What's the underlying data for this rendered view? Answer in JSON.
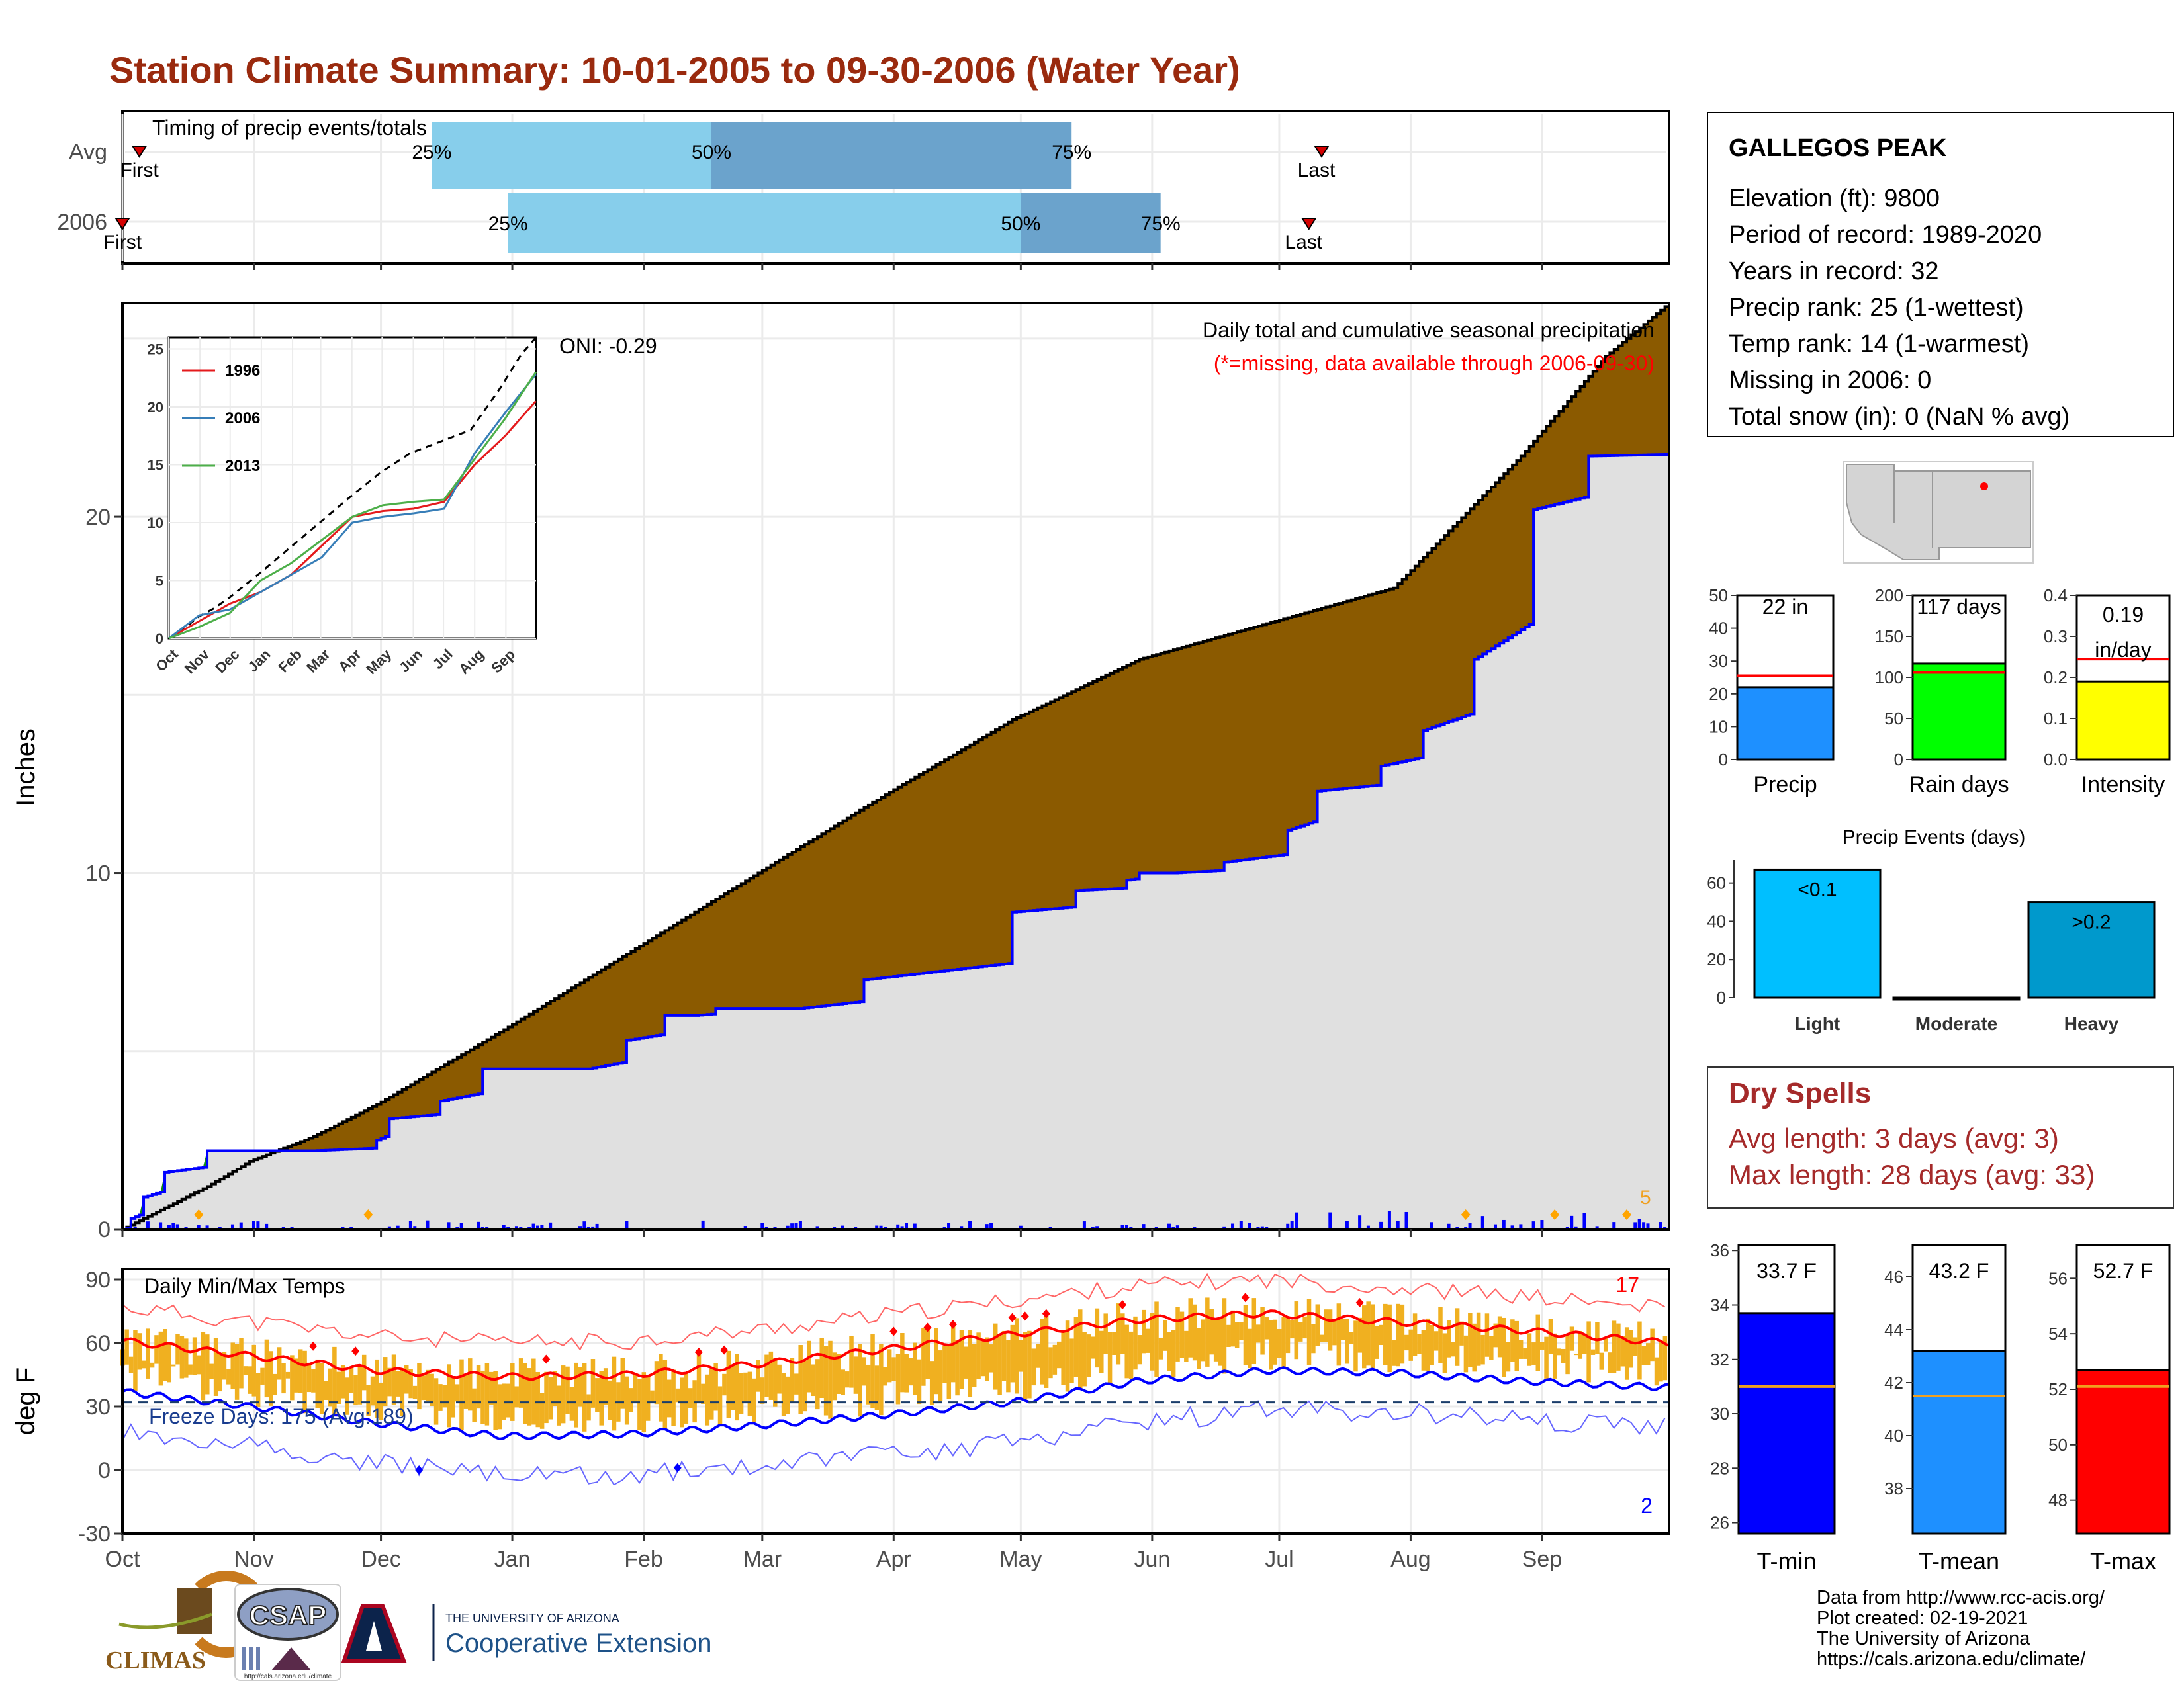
{
  "title": "Station Climate Summary: 10-01-2005 to 09-30-2006 (Water Year)",
  "colors": {
    "title": "#9a2a0e",
    "light_blue": "#87ceeb",
    "mid_blue": "#6ba3cc",
    "brown": "#8b5a00",
    "green": "#118c11",
    "grey_fill": "#e0e0e0",
    "blue": "#0000ff",
    "orange_bars": "#f0b020",
    "red": "#ff0000",
    "dry_red": "#a52a2a"
  },
  "timing": {
    "label": "Timing of precip events/totals",
    "rows": [
      "Avg",
      "2006"
    ],
    "avg": {
      "first_label": "First",
      "last_label": "Last",
      "p25": "25%",
      "p50": "50%",
      "p75": "75%",
      "p25_day": 73,
      "p50_day": 139,
      "p75_day": 224,
      "first_day": 4,
      "last_day": 283
    },
    "y2006": {
      "first_label": "First",
      "last_label": "Last",
      "p25": "25%",
      "p50": "50%",
      "p75": "75%",
      "p25_day": 91,
      "p50_day": 212,
      "p75_day": 245,
      "first_day": 0,
      "last_day": 280
    }
  },
  "precip": {
    "y_label": "Inches",
    "title_right": "Daily total and cumulative seasonal precipitation",
    "missing_note": "(*=missing, data available through 2006-09-30)",
    "oni": "ONI: -0.29",
    "count_label": "5",
    "y_ticks": [
      "0",
      "10",
      "20"
    ],
    "inset": {
      "y_ticks": [
        "0",
        "5",
        "10",
        "15",
        "20",
        "25"
      ],
      "x_ticks": [
        "Oct",
        "Nov",
        "Dec",
        "Jan",
        "Feb",
        "Mar",
        "Apr",
        "May",
        "Jun",
        "Jul",
        "Aug",
        "Sep"
      ],
      "legend": [
        "1996",
        "2006",
        "2013"
      ]
    }
  },
  "temps": {
    "title": "Daily Min/Max Temps",
    "y_label": "deg F",
    "y_ticks": [
      "90",
      "60",
      "30",
      "0",
      "-30"
    ],
    "freeze_note": "Freeze Days: 175 (Avg:189)",
    "record_high_count": "17",
    "record_low_count": "2"
  },
  "x_months": [
    "Oct",
    "Nov",
    "Dec",
    "Jan",
    "Feb",
    "Mar",
    "Apr",
    "May",
    "Jun",
    "Jul",
    "Aug",
    "Sep"
  ],
  "station": {
    "name": "GALLEGOS PEAK",
    "lines": [
      "Elevation (ft): 9800",
      "Period of record: 1989-2020",
      "Years in record: 32",
      "Precip rank: 25 (1-wettest)",
      "Temp rank: 14 (1-warmest)",
      "Missing in 2006: 0",
      "Total snow (in): 0 (NaN % avg)"
    ]
  },
  "summary_bars": [
    {
      "label": "Precip",
      "value_label": "22 in",
      "value": 22,
      "avg": 25.5,
      "ymax": 50,
      "ticks": [
        "0",
        "10",
        "20",
        "30",
        "40",
        "50"
      ],
      "color": "#1e90ff"
    },
    {
      "label": "Rain days",
      "value_label": "117 days",
      "value": 117,
      "avg": 106,
      "ymax": 200,
      "ticks": [
        "0",
        "50",
        "100",
        "150",
        "200"
      ],
      "color": "#00ff00"
    },
    {
      "label": "Intensity",
      "value_label_1": "0.19",
      "value_label_2": "in/day",
      "value": 0.19,
      "avg": 0.245,
      "ymax": 0.4,
      "ticks": [
        "0.0",
        "0.1",
        "0.2",
        "0.3",
        "0.4"
      ],
      "color": "#ffff00"
    }
  ],
  "events": {
    "title": "Precip Events (days)",
    "categories": [
      "Light",
      "Moderate",
      "Heavy"
    ],
    "values": [
      67,
      0,
      50
    ],
    "labels": [
      "<0.1",
      "",
      ">0.2"
    ],
    "ticks": [
      "0",
      "20",
      "40",
      "60"
    ],
    "colors": [
      "#00bfff",
      "#00bfff",
      "#0099cc"
    ]
  },
  "dry_spells": {
    "title": "Dry Spells",
    "avg_line": "Avg length: 3 days (avg: 3)",
    "max_line": "Max length: 28 days (avg: 33)"
  },
  "temp_bars": [
    {
      "label": "T-min",
      "value_label": "33.7 F",
      "value": 33.7,
      "avg": 31.0,
      "ymin": 25.6,
      "ymax": 36.2,
      "ticks": [
        "26",
        "28",
        "30",
        "32",
        "34",
        "36"
      ],
      "color": "#0000ff"
    },
    {
      "label": "T-mean",
      "value_label": "43.2 F",
      "value": 43.2,
      "avg": 41.5,
      "ymin": 36.3,
      "ymax": 47.2,
      "ticks": [
        "38",
        "40",
        "42",
        "44",
        "46"
      ],
      "color": "#1e90ff"
    },
    {
      "label": "T-max",
      "value_label": "52.7 F",
      "value": 52.7,
      "avg": 52.1,
      "ymin": 46.8,
      "ymax": 57.2,
      "ticks": [
        "48",
        "50",
        "52",
        "54",
        "56"
      ],
      "color": "#ff0000"
    }
  ],
  "footer": {
    "lines": [
      "Data from http://www.rcc-acis.org/",
      "Plot created: 02-19-2021",
      "The University of Arizona",
      "https://cals.arizona.edu/climate/"
    ],
    "logo_climas": "CLIMAS",
    "logo_csap": "CSAP",
    "logo_csap_url": "http://cals.arizona.edu/climate",
    "ua_small": "THE UNIVERSITY OF ARIZONA",
    "ua_big": "Cooperative Extension"
  },
  "chart_data": [
    {
      "type": "area",
      "title": "Daily total and cumulative seasonal precipitation",
      "ylabel": "Inches",
      "ylim": [
        0,
        26
      ],
      "x_unit": "day of water year (0 = Oct 1)",
      "series": [
        {
          "name": "2006",
          "x": [
            0,
            2,
            5,
            10,
            20,
            30,
            45,
            60,
            63,
            75,
            85,
            110,
            119,
            128,
            135,
            140,
            160,
            175,
            210,
            225,
            237,
            240,
            248,
            260,
            275,
            282,
            297,
            307,
            319,
            333,
            346,
            365
          ],
          "values": [
            0,
            0.3,
            0.9,
            1.6,
            2.2,
            2.2,
            2.2,
            2.5,
            3.1,
            3.6,
            4.5,
            4.5,
            5.3,
            6.0,
            6.0,
            6.2,
            6.2,
            7.0,
            8.9,
            9.5,
            9.8,
            10.0,
            10.0,
            10.3,
            11.2,
            12.3,
            13.0,
            14.0,
            16.0,
            20.2,
            21.7,
            21.9
          ]
        },
        {
          "x": [
            0,
            10,
            20,
            30,
            45,
            60,
            90,
            120,
            150,
            180,
            210,
            240,
            270,
            300,
            330,
            350,
            365
          ],
          "values": [
            0,
            0.6,
            1.2,
            1.9,
            2.6,
            3.5,
            5.6,
            7.8,
            10.0,
            12.2,
            14.3,
            16.0,
            17.0,
            18.0,
            21.7,
            24.5,
            26.0
          ]
        }
      ]
    },
    {
      "type": "line",
      "title": "Daily Min/Max Temps",
      "ylabel": "deg F",
      "ylim": [
        -30,
        90
      ],
      "series": [
        {
          "x": [
            0,
            30,
            60,
            90,
            120,
            150,
            180,
            210,
            240,
            270,
            300,
            330,
            365
          ],
          "values": [
            61,
            54,
            47,
            44,
            45,
            50,
            57,
            64,
            71,
            74,
            70,
            66,
            60
          ]
        },
        {
          "x": [
            0,
            30,
            60,
            90,
            120,
            150,
            180,
            210,
            240,
            270,
            300,
            330,
            365
          ],
          "values": [
            37,
            30,
            22,
            16,
            17,
            21,
            26,
            32,
            42,
            47,
            46,
            42,
            39
          ]
        }
      ]
    }
  ]
}
